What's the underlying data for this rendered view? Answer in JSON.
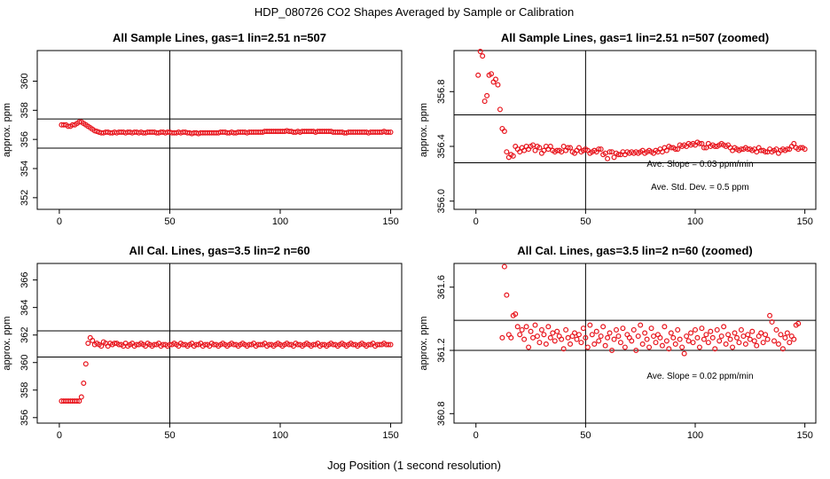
{
  "main_title": "HDP_080726  CO2 Shapes Averaged by Sample or Calibration",
  "x_axis_label": "Jog Position (1 second resolution)",
  "chart_data": [
    {
      "type": "scatter",
      "title": "All Sample Lines, gas=1 lin=2.51 n=507",
      "ylabel": "approx. ppm",
      "xlim": [
        -10,
        155
      ],
      "ylim": [
        351.2,
        362.1
      ],
      "xticks": [
        0,
        50,
        100,
        150
      ],
      "yticks": [
        352,
        354,
        356,
        358,
        360
      ],
      "hlines": [
        357.4,
        355.4
      ],
      "vline": 50,
      "annotations": [],
      "point_color": "#e8141c",
      "series": [
        {
          "name": "sample",
          "x_start": 1,
          "x_step": 1,
          "values": [
            357.0,
            357.0,
            357.0,
            356.9,
            356.9,
            357.0,
            357.0,
            357.1,
            357.2,
            357.2,
            357.1,
            357.0,
            356.9,
            356.8,
            356.7,
            356.6,
            356.55,
            356.5,
            356.45,
            356.45,
            356.5,
            356.5,
            356.45,
            356.45,
            356.5,
            356.45,
            356.5,
            356.5,
            356.5,
            356.45,
            356.5,
            356.5,
            356.45,
            356.5,
            356.5,
            356.45,
            356.5,
            356.45,
            356.45,
            356.5,
            356.5,
            356.5,
            356.5,
            356.45,
            356.45,
            356.5,
            356.5,
            356.45,
            356.5,
            356.5,
            356.45,
            356.45,
            356.45,
            356.5,
            356.45,
            356.5,
            356.5,
            356.45,
            356.45,
            356.4,
            356.45,
            356.45,
            356.4,
            356.45,
            356.45,
            356.45,
            356.45,
            356.45,
            356.45,
            356.45,
            356.45,
            356.45,
            356.5,
            356.5,
            356.5,
            356.45,
            356.45,
            356.5,
            356.45,
            356.45,
            356.5,
            356.5,
            356.5,
            356.5,
            356.45,
            356.5,
            356.5,
            356.5,
            356.5,
            356.5,
            356.5,
            356.5,
            356.55,
            356.55,
            356.55,
            356.55,
            356.55,
            356.55,
            356.55,
            356.55,
            356.55,
            356.55,
            356.6,
            356.55,
            356.55,
            356.5,
            356.5,
            356.55,
            356.5,
            356.55,
            356.55,
            356.55,
            356.55,
            356.55,
            356.55,
            356.5,
            356.55,
            356.55,
            356.55,
            356.55,
            356.55,
            356.55,
            356.55,
            356.5,
            356.5,
            356.5,
            356.5,
            356.5,
            356.45,
            356.45,
            356.5,
            356.5,
            356.5,
            356.5,
            356.5,
            356.5,
            356.5,
            356.5,
            356.5,
            356.45,
            356.5,
            356.5,
            356.5,
            356.5,
            356.5,
            356.5,
            356.55,
            356.5,
            356.5,
            356.5
          ]
        }
      ]
    },
    {
      "type": "scatter",
      "title": "All Sample Lines, gas=1 lin=2.51 n=507 (zoomed)",
      "ylabel": "approx. ppm",
      "xlim": [
        -10,
        155
      ],
      "ylim": [
        355.94,
        357.1
      ],
      "xticks": [
        0,
        50,
        100,
        150
      ],
      "yticks": [
        356.0,
        356.4,
        356.8
      ],
      "hlines": [
        356.63,
        356.28
      ],
      "vline": 50,
      "annotations": [
        "Ave. Slope =  0.03  ppm/min",
        "Ave. Std. Dev. =  0.5  ppm"
      ],
      "point_color": "#e8141c",
      "series": [
        {
          "name": "sample zoomed",
          "x_start": 1,
          "x_step": 1,
          "values": [
            356.92,
            357.1,
            357.06,
            356.73,
            356.77,
            356.92,
            356.93,
            356.87,
            356.89,
            356.85,
            356.67,
            356.53,
            356.51,
            356.36,
            356.32,
            356.34,
            356.33,
            356.4,
            356.38,
            356.36,
            356.39,
            356.37,
            356.4,
            356.38,
            356.4,
            356.41,
            356.37,
            356.4,
            356.39,
            356.35,
            356.37,
            356.4,
            356.38,
            356.4,
            356.37,
            356.36,
            356.37,
            356.37,
            356.36,
            356.4,
            356.37,
            356.39,
            356.39,
            356.36,
            356.35,
            356.37,
            356.39,
            356.36,
            356.37,
            356.38,
            356.37,
            356.35,
            356.36,
            356.37,
            356.36,
            356.38,
            356.38,
            356.34,
            356.35,
            356.31,
            356.36,
            356.36,
            356.32,
            356.35,
            356.34,
            356.34,
            356.36,
            356.34,
            356.36,
            356.35,
            356.36,
            356.35,
            356.36,
            356.35,
            356.36,
            356.37,
            356.35,
            356.36,
            356.37,
            356.36,
            356.35,
            356.37,
            356.36,
            356.38,
            356.36,
            356.39,
            356.37,
            356.4,
            356.39,
            356.39,
            356.38,
            356.38,
            356.41,
            356.4,
            356.41,
            356.4,
            356.42,
            356.41,
            356.42,
            356.41,
            356.43,
            356.42,
            356.42,
            356.39,
            356.39,
            356.42,
            356.4,
            356.41,
            356.4,
            356.4,
            356.41,
            356.42,
            356.41,
            356.4,
            356.41,
            356.39,
            356.37,
            356.39,
            356.38,
            356.37,
            356.38,
            356.38,
            356.39,
            356.38,
            356.38,
            356.37,
            356.38,
            356.36,
            356.39,
            356.37,
            356.37,
            356.36,
            356.36,
            356.38,
            356.36,
            356.37,
            356.38,
            356.35,
            356.37,
            356.38,
            356.37,
            356.38,
            356.38,
            356.4,
            356.42,
            356.39,
            356.38,
            356.39,
            356.39,
            356.38
          ]
        }
      ]
    },
    {
      "type": "scatter",
      "title": "All Cal. Lines, gas=3.5 lin=2 n=60",
      "ylabel": "approx. ppm",
      "xlim": [
        -10,
        155
      ],
      "ylim": [
        355.6,
        367.2
      ],
      "xticks": [
        0,
        50,
        100,
        150
      ],
      "yticks": [
        356,
        358,
        360,
        362,
        364,
        366
      ],
      "hlines": [
        362.3,
        360.4
      ],
      "vline": 50,
      "annotations": [],
      "point_color": "#e8141c",
      "series": [
        {
          "name": "calibration",
          "x_start": 1,
          "x_step": 1,
          "values": [
            357.2,
            357.2,
            357.2,
            357.2,
            357.2,
            357.2,
            357.2,
            357.2,
            357.2,
            357.5,
            358.5,
            359.9,
            361.4,
            361.8,
            361.6,
            361.3,
            361.4,
            361.3,
            361.2,
            361.5,
            361.4,
            361.2,
            361.4,
            361.3,
            361.4,
            361.4,
            361.3,
            361.3,
            361.2,
            361.4,
            361.2,
            361.3,
            361.4,
            361.2,
            361.3,
            361.3,
            361.4,
            361.3,
            361.2,
            361.4,
            361.3,
            361.2,
            361.3,
            361.3,
            361.4,
            361.2,
            361.3,
            361.3,
            361.2,
            361.3,
            361.3,
            361.4,
            361.3,
            361.2,
            361.4,
            361.3,
            361.3,
            361.2,
            361.3,
            361.4,
            361.2,
            361.3,
            361.3,
            361.4,
            361.2,
            361.3,
            361.3,
            361.2,
            361.4,
            361.3,
            361.3,
            361.2,
            361.3,
            361.4,
            361.3,
            361.2,
            361.3,
            361.4,
            361.3,
            361.3,
            361.2,
            361.3,
            361.4,
            361.3,
            361.2,
            361.3,
            361.3,
            361.4,
            361.2,
            361.3,
            361.3,
            361.3,
            361.4,
            361.2,
            361.3,
            361.3,
            361.2,
            361.3,
            361.4,
            361.3,
            361.2,
            361.3,
            361.4,
            361.3,
            361.3,
            361.2,
            361.4,
            361.3,
            361.3,
            361.2,
            361.3,
            361.4,
            361.3,
            361.2,
            361.3,
            361.3,
            361.4,
            361.2,
            361.3,
            361.3,
            361.2,
            361.3,
            361.4,
            361.3,
            361.3,
            361.2,
            361.3,
            361.4,
            361.3,
            361.2,
            361.3,
            361.4,
            361.3,
            361.3,
            361.2,
            361.3,
            361.4,
            361.3,
            361.2,
            361.3,
            361.3,
            361.4,
            361.2,
            361.3,
            361.3,
            361.3,
            361.4,
            361.3,
            361.3,
            361.3
          ]
        }
      ]
    },
    {
      "type": "scatter",
      "title": "All Cal. Lines, gas=3.5 lin=2 n=60 (zoomed)",
      "ylabel": "approx. ppm",
      "xlim": [
        -10,
        155
      ],
      "ylim": [
        360.74,
        361.75
      ],
      "xticks": [
        0,
        50,
        100,
        150
      ],
      "yticks": [
        360.8,
        361.2,
        361.6
      ],
      "hlines": [
        361.39,
        361.2
      ],
      "vline": 50,
      "annotations": [
        "Ave. Slope =  0.02  ppm/min"
      ],
      "point_color": "#e8141c",
      "series": [
        {
          "name": "calibration zoomed",
          "x_start": 12,
          "x_step": 1,
          "values": [
            361.28,
            361.73,
            361.55,
            361.3,
            361.28,
            361.42,
            361.43,
            361.35,
            361.3,
            361.33,
            361.27,
            361.35,
            361.22,
            361.32,
            361.28,
            361.36,
            361.29,
            361.25,
            361.33,
            361.3,
            361.24,
            361.35,
            361.28,
            361.31,
            361.26,
            361.32,
            361.29,
            361.27,
            361.21,
            361.33,
            361.28,
            361.24,
            361.29,
            361.31,
            361.27,
            361.3,
            361.25,
            361.34,
            361.28,
            361.22,
            361.36,
            361.3,
            361.24,
            361.32,
            361.26,
            361.29,
            361.35,
            361.23,
            361.28,
            361.31,
            361.2,
            361.27,
            361.33,
            361.29,
            361.25,
            361.34,
            361.22,
            361.3,
            361.28,
            361.26,
            361.33,
            361.2,
            361.29,
            361.36,
            361.24,
            361.31,
            361.27,
            361.22,
            361.34,
            361.29,
            361.25,
            361.3,
            361.28,
            361.23,
            361.35,
            361.26,
            361.21,
            361.31,
            361.28,
            361.24,
            361.33,
            361.27,
            361.22,
            361.18,
            361.29,
            361.26,
            361.31,
            361.25,
            361.33,
            361.28,
            361.22,
            361.34,
            361.27,
            361.3,
            361.25,
            361.32,
            361.28,
            361.21,
            361.33,
            361.26,
            361.29,
            361.35,
            361.24,
            361.3,
            361.27,
            361.22,
            361.31,
            361.28,
            361.25,
            361.33,
            361.29,
            361.24,
            361.3,
            361.27,
            361.32,
            361.26,
            361.23,
            361.29,
            361.31,
            361.25,
            361.3,
            361.27,
            361.42,
            361.38,
            361.26,
            361.33,
            361.24,
            361.3,
            361.21,
            361.28,
            361.31,
            361.25,
            361.29,
            361.27,
            361.36,
            361.37
          ]
        }
      ]
    }
  ]
}
